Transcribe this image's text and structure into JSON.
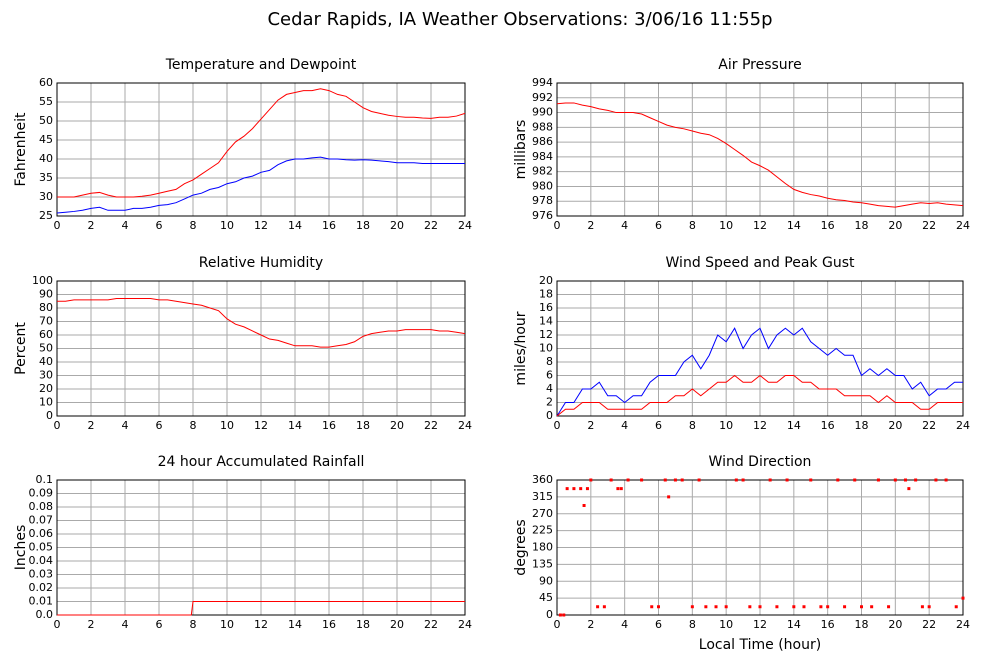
{
  "title": "Cedar Rapids, IA Weather Observations: 3/06/16 11:55p",
  "chart_data": [
    {
      "type": "line",
      "title": "Temperature and Dewpoint",
      "ylabel": "Fahrenheit",
      "x": [
        0,
        0.5,
        1,
        1.5,
        2,
        2.5,
        3,
        3.5,
        4,
        4.5,
        5,
        5.5,
        6,
        6.5,
        7,
        7.5,
        8,
        8.5,
        9,
        9.5,
        10,
        10.5,
        11,
        11.5,
        12,
        12.5,
        13,
        13.5,
        14,
        14.5,
        15,
        15.5,
        16,
        16.5,
        17,
        17.5,
        18,
        18.5,
        19,
        19.5,
        20,
        20.5,
        21,
        21.5,
        22,
        22.5,
        23,
        23.5,
        24
      ],
      "series": [
        {
          "name": "Temperature",
          "color": "#ff0000",
          "values": [
            30,
            30,
            30,
            30.5,
            31,
            31.2,
            30.5,
            30,
            30,
            30,
            30.2,
            30.5,
            31,
            31.5,
            32,
            33.5,
            34.5,
            36,
            37.5,
            39,
            42,
            44.5,
            46,
            48,
            50.5,
            53,
            55.5,
            57,
            57.5,
            58,
            58,
            58.5,
            58,
            57,
            56.5,
            55,
            53.5,
            52.5,
            52,
            51.5,
            51.2,
            51,
            51,
            50.8,
            50.7,
            51,
            51,
            51.3,
            52
          ]
        },
        {
          "name": "Dewpoint",
          "color": "#0000ff",
          "values": [
            25.8,
            26,
            26.2,
            26.5,
            27,
            27.3,
            26.5,
            26.5,
            26.5,
            27,
            27,
            27.3,
            27.8,
            28,
            28.5,
            29.5,
            30.5,
            31,
            32,
            32.5,
            33.5,
            34,
            35,
            35.5,
            36.5,
            37,
            38.5,
            39.5,
            40,
            40,
            40.3,
            40.5,
            40,
            40,
            39.8,
            39.7,
            39.8,
            39.7,
            39.5,
            39.3,
            39,
            39,
            39,
            38.8,
            38.8,
            38.8,
            38.8,
            38.8,
            38.8
          ]
        }
      ],
      "xlim": [
        0,
        24
      ],
      "xticks": [
        0,
        2,
        4,
        6,
        8,
        10,
        12,
        14,
        16,
        18,
        20,
        22,
        24
      ],
      "ylim": [
        25,
        60
      ],
      "yticks": [
        25,
        30,
        35,
        40,
        45,
        50,
        55,
        60
      ],
      "grid": true
    },
    {
      "type": "line",
      "title": "Air Pressure",
      "ylabel": "millibars",
      "x": [
        0,
        0.5,
        1,
        1.5,
        2,
        2.5,
        3,
        3.5,
        4,
        4.5,
        5,
        5.5,
        6,
        6.5,
        7,
        7.5,
        8,
        8.5,
        9,
        9.5,
        10,
        10.5,
        11,
        11.5,
        12,
        12.5,
        13,
        13.5,
        14,
        14.5,
        15,
        15.5,
        16,
        16.5,
        17,
        17.5,
        18,
        18.5,
        19,
        19.5,
        20,
        20.5,
        21,
        21.5,
        22,
        22.5,
        23,
        23.5,
        24
      ],
      "series": [
        {
          "name": "Pressure",
          "color": "#ff0000",
          "values": [
            991.2,
            991.3,
            991.3,
            991,
            990.8,
            990.5,
            990.3,
            990,
            990,
            990,
            989.8,
            989.3,
            988.8,
            988.3,
            988,
            987.8,
            987.5,
            987.2,
            987,
            986.5,
            985.8,
            985,
            984.2,
            983.3,
            982.8,
            982.2,
            981.3,
            980.4,
            979.6,
            979.2,
            978.9,
            978.7,
            978.4,
            978.2,
            978.1,
            977.9,
            977.8,
            977.6,
            977.4,
            977.3,
            977.2,
            977.4,
            977.6,
            977.8,
            977.7,
            977.8,
            977.6,
            977.5,
            977.4
          ]
        }
      ],
      "xlim": [
        0,
        24
      ],
      "xticks": [
        0,
        2,
        4,
        6,
        8,
        10,
        12,
        14,
        16,
        18,
        20,
        22,
        24
      ],
      "ylim": [
        976,
        994
      ],
      "yticks": [
        976,
        978,
        980,
        982,
        984,
        986,
        988,
        990,
        992,
        994
      ],
      "grid": true
    },
    {
      "type": "line",
      "title": "Relative Humidity",
      "ylabel": "Percent",
      "x": [
        0,
        0.5,
        1,
        1.5,
        2,
        2.5,
        3,
        3.5,
        4,
        4.5,
        5,
        5.5,
        6,
        6.5,
        7,
        7.5,
        8,
        8.5,
        9,
        9.5,
        10,
        10.5,
        11,
        11.5,
        12,
        12.5,
        13,
        13.5,
        14,
        14.5,
        15,
        15.5,
        16,
        16.5,
        17,
        17.5,
        18,
        18.5,
        19,
        19.5,
        20,
        20.5,
        21,
        21.5,
        22,
        22.5,
        23,
        23.5,
        24
      ],
      "series": [
        {
          "name": "Relative Humidity",
          "color": "#ff0000",
          "values": [
            85,
            85,
            86,
            86,
            86,
            86,
            86,
            87,
            87,
            87,
            87,
            87,
            86,
            86,
            85,
            84,
            83,
            82,
            80,
            78,
            72,
            68,
            66,
            63,
            60,
            57,
            56,
            54,
            52,
            52,
            52,
            51,
            51,
            52,
            53,
            55,
            59,
            61,
            62,
            63,
            63,
            64,
            64,
            64,
            64,
            63,
            63,
            62,
            61
          ]
        }
      ],
      "xlim": [
        0,
        24
      ],
      "xticks": [
        0,
        2,
        4,
        6,
        8,
        10,
        12,
        14,
        16,
        18,
        20,
        22,
        24
      ],
      "ylim": [
        0,
        100
      ],
      "yticks": [
        0,
        10,
        20,
        30,
        40,
        50,
        60,
        70,
        80,
        90,
        100
      ],
      "grid": true
    },
    {
      "type": "line",
      "title": "Wind Speed and Peak Gust",
      "ylabel": "miles/hour",
      "x": [
        0,
        0.5,
        1,
        1.5,
        2,
        2.5,
        3,
        3.5,
        4,
        4.5,
        5,
        5.5,
        6,
        6.5,
        7,
        7.5,
        8,
        8.5,
        9,
        9.5,
        10,
        10.5,
        11,
        11.5,
        12,
        12.5,
        13,
        13.5,
        14,
        14.5,
        15,
        15.5,
        16,
        16.5,
        17,
        17.5,
        18,
        18.5,
        19,
        19.5,
        20,
        20.5,
        21,
        21.5,
        22,
        22.5,
        23,
        23.5,
        24
      ],
      "series": [
        {
          "name": "Peak Gust",
          "color": "#0000ff",
          "values": [
            0,
            2,
            2,
            4,
            4,
            5,
            3,
            3,
            2,
            3,
            3,
            5,
            6,
            6,
            6,
            8,
            9,
            7,
            9,
            12,
            11,
            13,
            10,
            12,
            13,
            10,
            12,
            13,
            12,
            13,
            11,
            10,
            9,
            10,
            9,
            9,
            6,
            7,
            6,
            7,
            6,
            6,
            4,
            5,
            3,
            4,
            4,
            5,
            5
          ]
        },
        {
          "name": "Wind Speed",
          "color": "#ff0000",
          "values": [
            0,
            1,
            1,
            2,
            2,
            2,
            1,
            1,
            1,
            1,
            1,
            2,
            2,
            2,
            3,
            3,
            4,
            3,
            4,
            5,
            5,
            6,
            5,
            5,
            6,
            5,
            5,
            6,
            6,
            5,
            5,
            4,
            4,
            4,
            3,
            3,
            3,
            3,
            2,
            3,
            2,
            2,
            2,
            1,
            1,
            2,
            2,
            2,
            2
          ]
        }
      ],
      "xlim": [
        0,
        24
      ],
      "xticks": [
        0,
        2,
        4,
        6,
        8,
        10,
        12,
        14,
        16,
        18,
        20,
        22,
        24
      ],
      "ylim": [
        0,
        20
      ],
      "yticks": [
        0,
        2,
        4,
        6,
        8,
        10,
        12,
        14,
        16,
        18,
        20
      ],
      "grid": true
    },
    {
      "type": "line",
      "title": "24 hour Accumulated Rainfall",
      "ylabel": "Inches",
      "x": [
        0,
        7.9,
        8,
        24
      ],
      "series": [
        {
          "name": "Rainfall",
          "color": "#ff0000",
          "values": [
            0,
            0,
            0.01,
            0.01
          ]
        }
      ],
      "xlim": [
        0,
        24
      ],
      "xticks": [
        0,
        2,
        4,
        6,
        8,
        10,
        12,
        14,
        16,
        18,
        20,
        22,
        24
      ],
      "ylim": [
        0,
        0.1
      ],
      "yticks": [
        {
          "value": 0,
          "label": "0.0"
        },
        0.01,
        0.02,
        0.03,
        0.04,
        0.05,
        0.06,
        0.07,
        0.08,
        0.09,
        0.1
      ],
      "grid": true
    },
    {
      "type": "scatter",
      "title": "Wind Direction",
      "ylabel": "degrees",
      "xlabel": "Local Time (hour)",
      "x": [
        0.2,
        0.4,
        0.6,
        1,
        1.4,
        1.6,
        1.8,
        2,
        2.4,
        2.8,
        3.2,
        3.6,
        3.8,
        4.2,
        5,
        5.6,
        6,
        6.4,
        6.6,
        7,
        7.4,
        8,
        8.4,
        8.8,
        9.4,
        10,
        10.6,
        11,
        11.4,
        12,
        12.6,
        13,
        13.6,
        14,
        14.6,
        15,
        15.6,
        16,
        16.6,
        17,
        17.6,
        18,
        18.6,
        19,
        19.6,
        20,
        20.6,
        20.8,
        21.2,
        21.6,
        22,
        22.4,
        23,
        23.6,
        24
      ],
      "series": [
        {
          "name": "Wind Direction",
          "color": "#ff0000",
          "values": [
            0,
            0,
            337,
            337,
            337,
            292,
            337,
            360,
            22,
            22,
            360,
            337,
            337,
            360,
            360,
            22,
            22,
            360,
            315,
            360,
            360,
            22,
            360,
            22,
            22,
            22,
            360,
            360,
            22,
            22,
            360,
            22,
            360,
            22,
            22,
            360,
            22,
            22,
            360,
            22,
            360,
            22,
            22,
            360,
            22,
            360,
            360,
            337,
            360,
            22,
            22,
            360,
            360,
            22,
            45
          ]
        }
      ],
      "xlim": [
        0,
        24
      ],
      "xticks": [
        0,
        2,
        4,
        6,
        8,
        10,
        12,
        14,
        16,
        18,
        20,
        22,
        24
      ],
      "ylim": [
        0,
        360
      ],
      "yticks": [
        0,
        45,
        90,
        135,
        180,
        225,
        270,
        315,
        360
      ],
      "grid": true
    }
  ]
}
